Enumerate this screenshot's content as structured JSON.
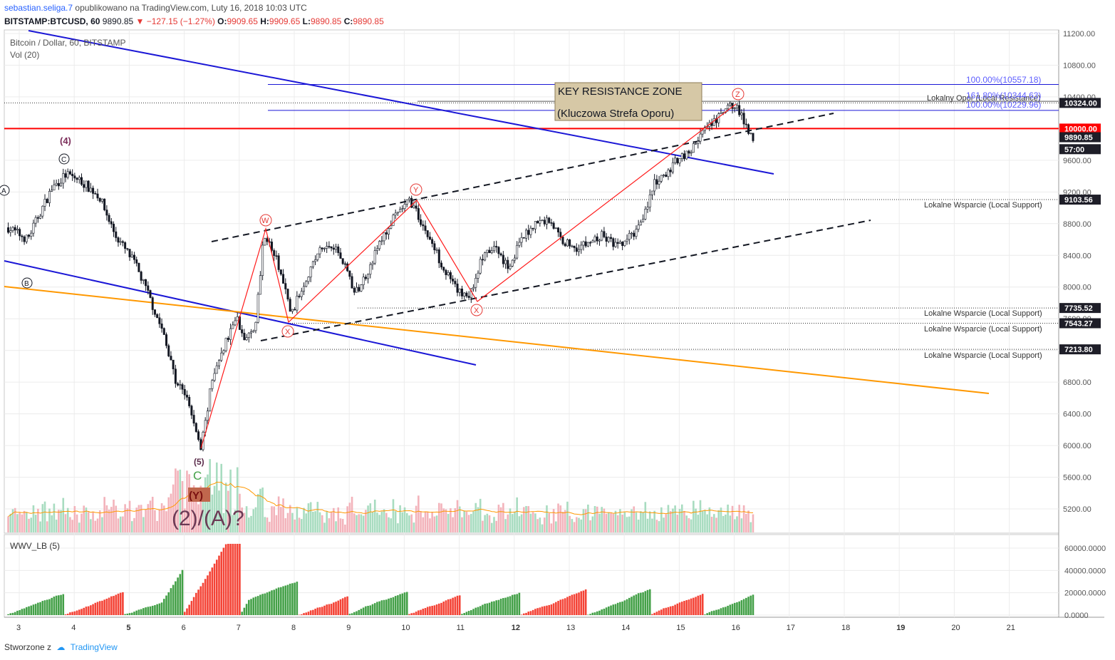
{
  "header": {
    "author": "sebastian.seliga.7",
    "published_text": "opublikowano na TradingView.com, Luty 16, 2018 10:03 UTC",
    "symbol": "BITSTAMP:BTCUSD, 60",
    "last": "9890.85",
    "change": "▼ −127.15 (−1.27%)",
    "o_label": "O:",
    "o_value": "9909.65",
    "h_label": "H:",
    "h_value": "9909.65",
    "l_label": "L:",
    "l_value": "9890.85",
    "c_label": "C:",
    "c_value": "9890.85"
  },
  "legend": {
    "main": "Bitcoin / Dollar, 60, BITSTAMP",
    "vol": "Vol (20)",
    "wwv": "WWV_LB (5)"
  },
  "footer": {
    "created_with": "Stworzone z",
    "brand": "TradingView"
  },
  "annotations": {
    "key_zone_title": "KEY RESISTANCE ZONE",
    "key_zone_subtitle": "(Kluczowa Strefa Oporu)",
    "wave_4": "(4)",
    "wave_c_circle": "C",
    "wave_b_circle": "B",
    "wave_a_circle": "A",
    "wave_w": "W",
    "wave_x1": "X",
    "wave_y": "Y",
    "wave_x2": "X",
    "wave_z": "Z",
    "wave_5": "(5)",
    "wave_c": "C",
    "wave_y_big": "(Y)",
    "wave_2a": "(2)/(A)?",
    "fib_100_upper": "100.00%(10557.18)",
    "fib_161": "161.80%(10344.63)",
    "fib_100_lower": "100.00%(10229.96)",
    "local_resistance": "Lokalny Opór (Local Resistance)",
    "support_9103": "Lokalne Wsparcie (Local Support)",
    "support_7735": "Lokalne Wsparcie (Local Support)",
    "support_7543": "Lokalne Wsparcie (Local Support)",
    "support_7213": "Lokalne Wsparcie (Local Support)"
  },
  "colors": {
    "up": "#53b987",
    "down": "#eb4d5c",
    "candle": "#131722",
    "resistance_red": "#ff0000",
    "trend_blue": "#1b17d6",
    "orange": "#ff9800",
    "vol_ma": "#ff9800",
    "osc_up": "#43a047",
    "osc_down": "#f44336",
    "fib_blue": "#5d5dff"
  },
  "chart_data": [
    {
      "type": "candlestick",
      "title": "Bitcoin / Dollar, 60, BITSTAMP",
      "x_ticks": [
        "3",
        "4",
        "5",
        "6",
        "7",
        "8",
        "9",
        "10",
        "11",
        "12",
        "13",
        "14",
        "15",
        "16",
        "17",
        "18",
        "19",
        "20",
        "21"
      ],
      "y_ticks": [
        "11200.00",
        "10800.00",
        "10400.00",
        "10000.00",
        "9600.00",
        "9200.00",
        "8800.00",
        "8400.00",
        "8000.00",
        "7600.00",
        "7200.00",
        "6800.00",
        "6400.00",
        "6000.00",
        "5600.00",
        "5200.00"
      ],
      "ylim": [
        4850,
        11250
      ],
      "price_tags": [
        {
          "label": "10324.00",
          "value": 10324,
          "style": "dark"
        },
        {
          "label": "10000.00",
          "value": 10000,
          "style": "red"
        },
        {
          "label": "9890.85",
          "value": 9890.85,
          "style": "dark"
        },
        {
          "label": "57:00",
          "value": 9740,
          "style": "dark"
        },
        {
          "label": "9103.56",
          "value": 9103.56,
          "style": "dark"
        },
        {
          "label": "7735.52",
          "value": 7735.52,
          "style": "dark"
        },
        {
          "label": "7543.27",
          "value": 7543.27,
          "style": "dark"
        },
        {
          "label": "7213.80",
          "value": 7213.8,
          "style": "dark"
        }
      ],
      "path_x_days": [
        2.8,
        3.15,
        3.35,
        3.6,
        3.85,
        4.1,
        4.45,
        4.75,
        5.1,
        5.35,
        5.6,
        5.85,
        6.05,
        6.3,
        6.5,
        6.75,
        6.95,
        7.1,
        7.3,
        7.45,
        7.7,
        7.95,
        8.2,
        8.45,
        8.7,
        8.95,
        9.1,
        9.3,
        9.55,
        9.8,
        10.1,
        10.25,
        10.5,
        10.75,
        10.95,
        11.2,
        11.4,
        11.65,
        11.9,
        12.1,
        12.35,
        12.65,
        12.85,
        13.1,
        13.35,
        13.6,
        13.9,
        14.2,
        14.4,
        14.55,
        14.75,
        15.0,
        15.2,
        15.4,
        15.6,
        15.8,
        16.0,
        16.2,
        16.35
      ],
      "path_close": [
        8750,
        8600,
        8900,
        9250,
        9420,
        9350,
        9150,
        8650,
        8300,
        7900,
        7450,
        6800,
        6600,
        5950,
        6800,
        7300,
        7650,
        7300,
        7550,
        8700,
        8300,
        7650,
        8100,
        8450,
        8550,
        8250,
        7900,
        8150,
        8550,
        8850,
        9100,
        8900,
        8550,
        8200,
        7950,
        7900,
        8350,
        8500,
        8250,
        8550,
        8800,
        8850,
        8600,
        8500,
        8550,
        8650,
        8500,
        8700,
        9000,
        9300,
        9400,
        9650,
        9700,
        9950,
        10050,
        10200,
        10324,
        10050,
        9890.85
      ],
      "volume_ma": "present",
      "wwv_histogram": "red and green alternating waves, right scale 0.0000 to 60000.0000",
      "wwv_ticks": [
        "60000.0000",
        "40000.0000",
        "20000.0000",
        "0.0000"
      ]
    }
  ]
}
